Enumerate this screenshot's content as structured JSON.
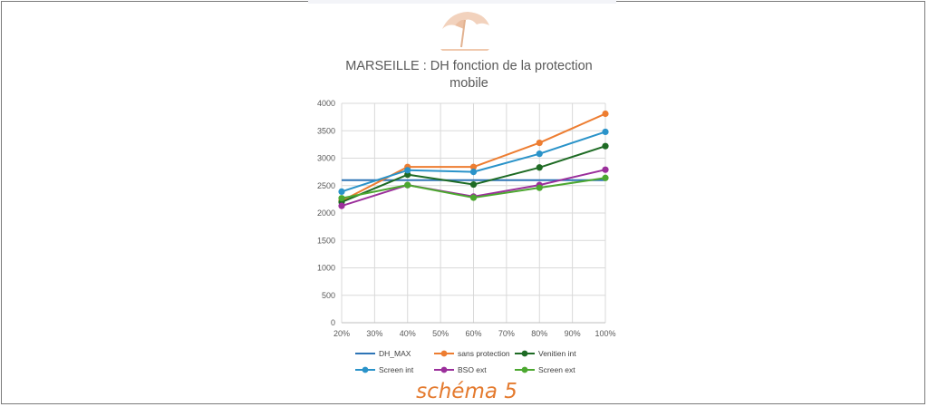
{
  "header": {
    "logo_icon": "beach-umbrella-icon"
  },
  "caption": "schéma 5",
  "colors": {
    "caption": "#e47a2e",
    "grid": "#d9d9d9",
    "title": "#595959"
  },
  "chart_data": {
    "type": "line",
    "title": "MARSEILLE : DH fonction de la protection mobile",
    "xlabel": "",
    "ylabel": "",
    "x_ticks": [
      "20%",
      "30%",
      "40%",
      "50%",
      "60%",
      "70%",
      "80%",
      "90%",
      "100%"
    ],
    "xlim": [
      20,
      100
    ],
    "ylim": [
      0,
      4000
    ],
    "y_ticks": [
      "0",
      "500",
      "1000",
      "1500",
      "2000",
      "2500",
      "3000",
      "3500",
      "4000"
    ],
    "grid": true,
    "legend_position": "bottom",
    "x": [
      20,
      40,
      60,
      80,
      100
    ],
    "series": [
      {
        "name": "DH_MAX",
        "color": "#2e75b6",
        "markers": false,
        "values": [
          2600,
          2600,
          2600,
          2600,
          2600
        ]
      },
      {
        "name": "sans protection",
        "color": "#ed7d31",
        "markers": true,
        "values": [
          2220,
          2840,
          2840,
          3280,
          3810
        ]
      },
      {
        "name": "Venitien int",
        "color": "#1e6b24",
        "markers": true,
        "values": [
          2200,
          2700,
          2520,
          2830,
          3220
        ]
      },
      {
        "name": "Screen int",
        "color": "#2a93c9",
        "markers": true,
        "values": [
          2390,
          2780,
          2750,
          3080,
          3480
        ]
      },
      {
        "name": "BSO ext",
        "color": "#9b2f9b",
        "markers": true,
        "values": [
          2130,
          2510,
          2300,
          2510,
          2790
        ]
      },
      {
        "name": "Screen ext",
        "color": "#4ca830",
        "markers": true,
        "values": [
          2270,
          2510,
          2280,
          2460,
          2640
        ]
      }
    ]
  }
}
